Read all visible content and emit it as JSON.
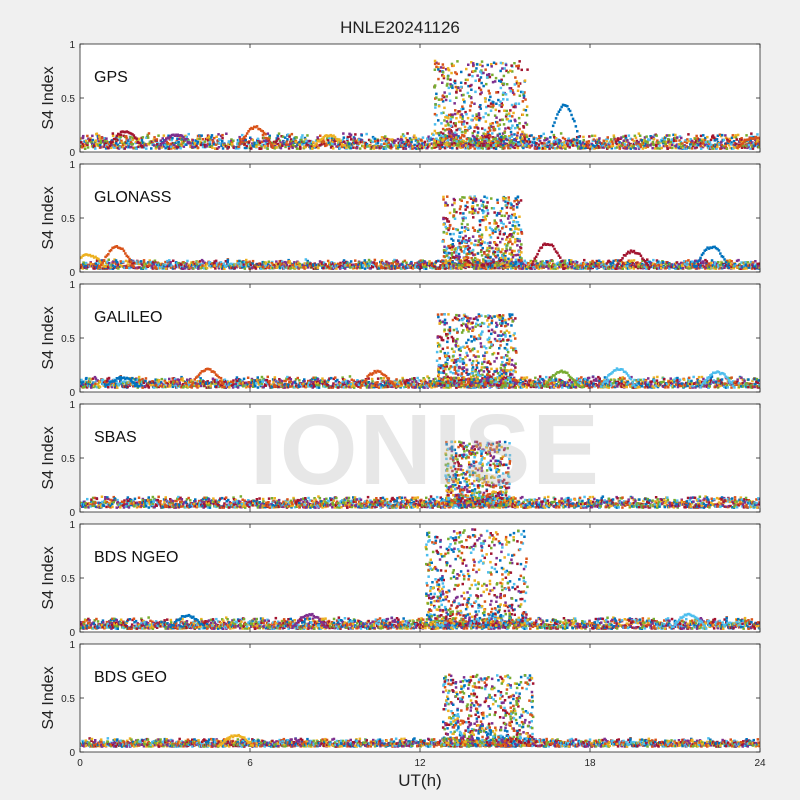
{
  "title": "HNLE20241126",
  "watermark": "IONISE",
  "chart_data": {
    "type": "scatter",
    "title": "HNLE20241126",
    "xlabel": "UT(h)",
    "ylabel": "S4 Index",
    "xlim": [
      0,
      24
    ],
    "ylim": [
      0,
      1
    ],
    "xticks": [
      0,
      6,
      12,
      18,
      24
    ],
    "yticks": [
      0,
      0.5,
      1
    ],
    "grid": false,
    "colors": [
      "#0072BD",
      "#D95319",
      "#EDB120",
      "#7E2F8E",
      "#77AC30",
      "#4DBEEE",
      "#A2142F"
    ],
    "panels": [
      {
        "name": "GPS",
        "baseline": [
          0.03,
          0.18
        ],
        "storm": {
          "start": 12.5,
          "end": 15.8,
          "peak": 0.85
        },
        "events": [
          [
            6.2,
            0.22
          ],
          [
            1.6,
            0.18
          ],
          [
            3.4,
            0.15
          ],
          [
            8.8,
            0.14
          ],
          [
            17.1,
            0.42
          ],
          [
            23.8,
            0.12
          ]
        ]
      },
      {
        "name": "GLONASS",
        "baseline": [
          0.03,
          0.12
        ],
        "storm": {
          "start": 12.8,
          "end": 15.6,
          "peak": 0.7
        },
        "events": [
          [
            0.3,
            0.15
          ],
          [
            1.3,
            0.22
          ],
          [
            16.5,
            0.25
          ],
          [
            19.5,
            0.18
          ],
          [
            22.3,
            0.22
          ]
        ]
      },
      {
        "name": "GALILEO",
        "baseline": [
          0.04,
          0.15
        ],
        "storm": {
          "start": 12.6,
          "end": 15.4,
          "peak": 0.72
        },
        "events": [
          [
            1.5,
            0.12
          ],
          [
            4.5,
            0.2
          ],
          [
            10.5,
            0.18
          ],
          [
            17,
            0.18
          ],
          [
            19,
            0.2
          ],
          [
            22.5,
            0.17
          ]
        ]
      },
      {
        "name": "SBAS",
        "baseline": [
          0.04,
          0.15
        ],
        "storm": {
          "start": 12.9,
          "end": 15.2,
          "peak": 0.65
        },
        "events": []
      },
      {
        "name": "BDS NGEO",
        "baseline": [
          0.03,
          0.14
        ],
        "storm": {
          "start": 12.2,
          "end": 15.8,
          "peak": 0.95
        },
        "events": [
          [
            3.8,
            0.14
          ],
          [
            8.1,
            0.15
          ],
          [
            21.5,
            0.15
          ]
        ]
      },
      {
        "name": "BDS GEO",
        "baseline": [
          0.05,
          0.13
        ],
        "storm": {
          "start": 12.8,
          "end": 16.0,
          "peak": 0.72
        },
        "events": [
          [
            5.5,
            0.14
          ]
        ]
      }
    ]
  }
}
